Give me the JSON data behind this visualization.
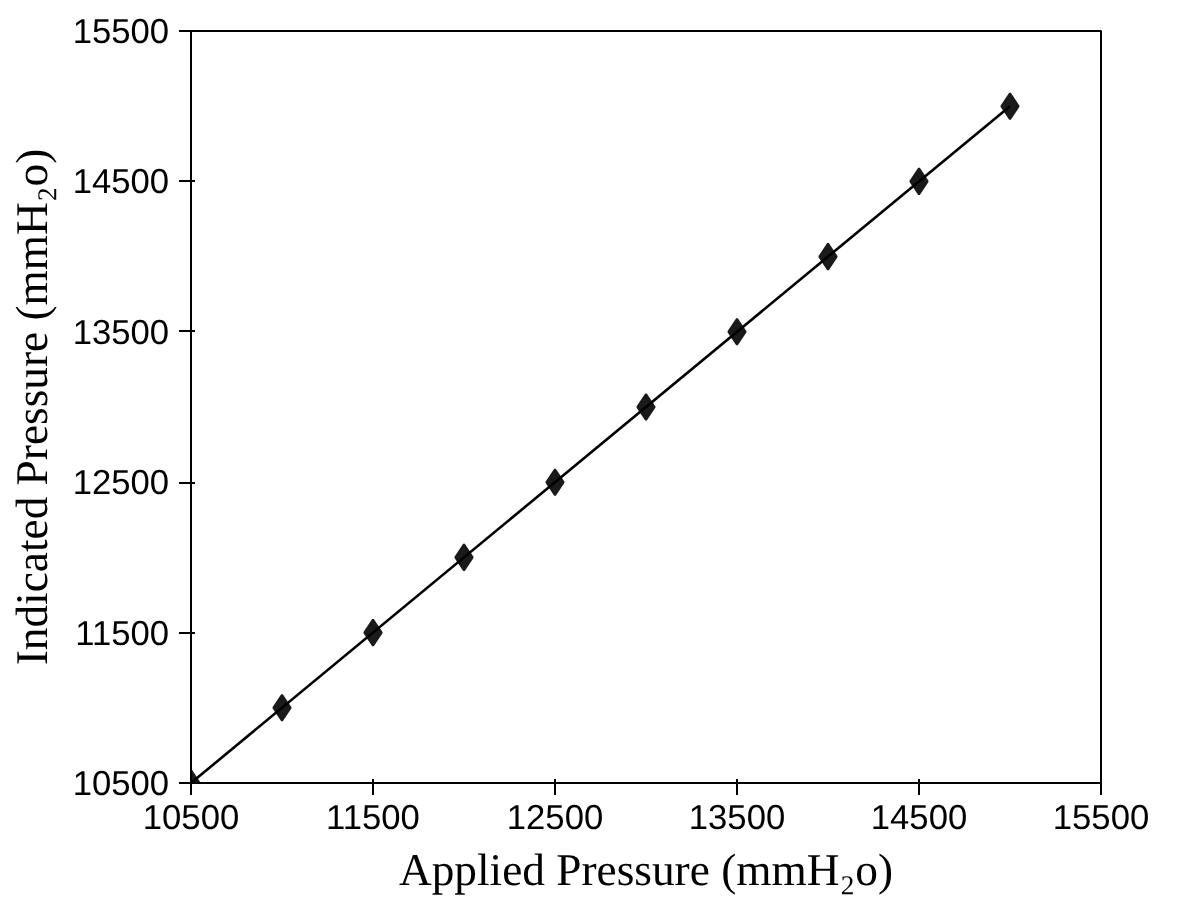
{
  "chart_data": {
    "type": "scatter",
    "xlabel": "Applied Pressure (mmH₂o)",
    "ylabel": "Indicated Pressure (mmH₂o)",
    "xlim": [
      10500,
      15500
    ],
    "ylim": [
      10500,
      15500
    ],
    "xticks": [
      10500,
      11500,
      12500,
      13500,
      14500,
      15500
    ],
    "yticks": [
      10500,
      11500,
      12500,
      13500,
      14500,
      15500
    ],
    "grid": false,
    "marker": "diamond",
    "series": [
      {
        "color": "#1a1a1a",
        "x": [
          10500,
          11000,
          11500,
          12000,
          12500,
          13000,
          13500,
          14000,
          14500,
          15000
        ],
        "values": [
          10500,
          11000,
          11500,
          12000,
          12500,
          13000,
          13500,
          14000,
          14500,
          15000
        ]
      },
      {
        "type": "line",
        "color": "#000000",
        "marker": "none",
        "x": [
          10500,
          15000
        ],
        "values": [
          10500,
          15000
        ]
      }
    ]
  }
}
